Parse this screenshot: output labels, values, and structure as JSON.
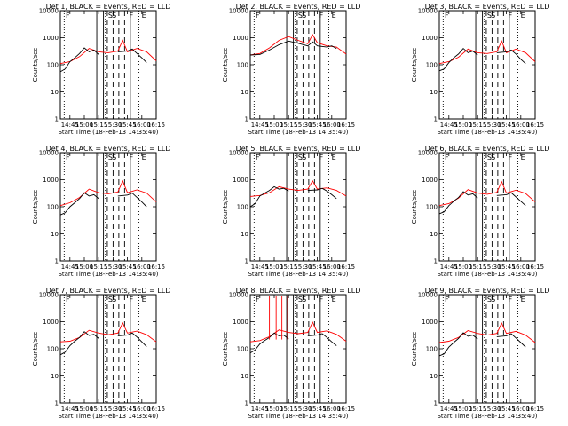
{
  "chart_data": {
    "type": "line",
    "layout": "3x3 grid",
    "y_scale": "log",
    "ylim": [
      1,
      10000
    ],
    "xlim": [
      "14:35",
      "16:15"
    ],
    "ylabel": "Counts/sec",
    "xlabel": "Start Time (18-Feb-13 14:35:40)",
    "x_ticks": [
      "14:45",
      "15:00",
      "15:15",
      "15:30",
      "15:45",
      "16:00",
      "16:15"
    ],
    "y_ticks": [
      "1",
      "10",
      "100",
      "1000",
      "10000"
    ],
    "series_colors": {
      "events": "#000000",
      "lld": "#ff0000"
    },
    "panels": [
      {
        "title": "Det 1, BLACK = Events, RED = LLD",
        "letters": [
          "F",
          "S",
          "S",
          "F",
          "E"
        ],
        "events": {
          "x": [
            "14:35",
            "14:40",
            "14:45",
            "14:50",
            "14:55",
            "15:00",
            "15:05",
            "15:10",
            "15:15"
          ],
          "y": [
            55,
            70,
            130,
            180,
            260,
            420,
            300,
            350,
            240
          ]
        },
        "events2": {
          "x": [
            "15:35",
            "15:45",
            "15:50",
            "15:55",
            "16:00",
            "16:05"
          ],
          "y": [
            300,
            320,
            380,
            260,
            180,
            120
          ]
        },
        "lld": {
          "x": [
            "14:35",
            "14:45",
            "14:55",
            "15:05",
            "15:15",
            "15:25",
            "15:35",
            "15:40",
            "15:45",
            "15:55",
            "16:05",
            "16:15"
          ],
          "y": [
            110,
            130,
            200,
            400,
            300,
            280,
            320,
            800,
            300,
            400,
            300,
            140
          ]
        }
      },
      {
        "title": "Det 2, BLACK = Events, RED = LLD",
        "letters": [
          "F",
          "S",
          "S",
          "F",
          "E"
        ],
        "events": {
          "x": [
            "14:35",
            "14:45",
            "14:55",
            "15:05",
            "15:15",
            "15:25",
            "15:35",
            "15:40",
            "15:45",
            "15:55",
            "16:00",
            "16:05"
          ],
          "y": [
            230,
            240,
            350,
            550,
            750,
            620,
            500,
            700,
            500,
            450,
            500,
            400
          ]
        },
        "events2": {
          "x": [],
          "y": []
        },
        "lld": {
          "x": [
            "14:35",
            "14:45",
            "14:55",
            "15:05",
            "15:15",
            "15:25",
            "15:35",
            "15:40",
            "15:45",
            "15:55",
            "16:05",
            "16:15"
          ],
          "y": [
            230,
            260,
            420,
            800,
            1100,
            800,
            600,
            1300,
            650,
            500,
            450,
            250
          ]
        }
      },
      {
        "title": "Det 3, BLACK = Events, RED = LLD",
        "letters": [
          "F",
          "S",
          "S",
          "F",
          "E"
        ],
        "events": {
          "x": [
            "14:35",
            "14:40",
            "14:45",
            "14:50",
            "14:55",
            "15:00",
            "15:05",
            "15:10",
            "15:15"
          ],
          "y": [
            60,
            70,
            120,
            180,
            250,
            400,
            280,
            320,
            230
          ]
        },
        "events2": {
          "x": [
            "15:35",
            "15:45",
            "15:50",
            "15:55",
            "16:00",
            "16:05"
          ],
          "y": [
            280,
            300,
            350,
            250,
            160,
            110
          ]
        },
        "lld": {
          "x": [
            "14:35",
            "14:45",
            "14:55",
            "15:05",
            "15:15",
            "15:25",
            "15:35",
            "15:40",
            "15:45",
            "15:55",
            "16:05",
            "16:15"
          ],
          "y": [
            110,
            130,
            190,
            380,
            280,
            260,
            300,
            750,
            280,
            380,
            280,
            130
          ]
        }
      },
      {
        "title": "Det 4, BLACK = Events, RED = LLD",
        "letters": [
          "F",
          "S",
          "S",
          "F",
          "E"
        ],
        "events": {
          "x": [
            "14:35",
            "14:40",
            "14:45",
            "14:50",
            "14:55",
            "15:00",
            "15:05",
            "15:10",
            "15:15"
          ],
          "y": [
            50,
            60,
            100,
            140,
            200,
            330,
            250,
            280,
            200
          ]
        },
        "events2": {
          "x": [
            "15:35",
            "15:45",
            "15:50",
            "15:55",
            "16:00",
            "16:05"
          ],
          "y": [
            250,
            270,
            320,
            220,
            150,
            100
          ]
        },
        "lld": {
          "x": [
            "14:35",
            "14:45",
            "14:55",
            "15:05",
            "15:15",
            "15:25",
            "15:35",
            "15:40",
            "15:45",
            "15:55",
            "16:05",
            "16:15"
          ],
          "y": [
            110,
            140,
            220,
            450,
            330,
            300,
            350,
            900,
            330,
            420,
            320,
            150
          ]
        }
      },
      {
        "title": "Det 5, BLACK = Events, RED = LLD",
        "letters": [
          "F",
          "S",
          "S",
          "F",
          "E"
        ],
        "events": {
          "x": [
            "14:35",
            "14:40",
            "14:45",
            "14:50",
            "14:55",
            "15:00",
            "15:05",
            "15:10",
            "15:15"
          ],
          "y": [
            100,
            130,
            250,
            320,
            400,
            550,
            450,
            480,
            380
          ]
        },
        "events2": {
          "x": [
            "15:35",
            "15:45",
            "15:50",
            "15:55",
            "16:00",
            "16:05"
          ],
          "y": [
            400,
            420,
            480,
            380,
            280,
            200
          ]
        },
        "lld": {
          "x": [
            "14:35",
            "14:45",
            "14:55",
            "15:05",
            "15:15",
            "15:25",
            "15:35",
            "15:40",
            "15:45",
            "15:55",
            "16:05",
            "16:15"
          ],
          "y": [
            240,
            260,
            330,
            550,
            450,
            400,
            450,
            900,
            450,
            500,
            400,
            250
          ]
        }
      },
      {
        "title": "Det 6, BLACK = Events, RED = LLD",
        "letters": [
          "F",
          "S",
          "S",
          "F",
          "E"
        ],
        "events": {
          "x": [
            "14:35",
            "14:40",
            "14:45",
            "14:50",
            "14:55",
            "15:00",
            "15:05",
            "15:10",
            "15:15"
          ],
          "y": [
            55,
            65,
            110,
            160,
            220,
            360,
            270,
            300,
            210
          ]
        },
        "events2": {
          "x": [
            "15:35",
            "15:45",
            "15:50",
            "15:55",
            "16:00",
            "16:05"
          ],
          "y": [
            260,
            280,
            330,
            230,
            160,
            110
          ]
        },
        "lld": {
          "x": [
            "14:35",
            "14:45",
            "14:55",
            "15:05",
            "15:15",
            "15:25",
            "15:35",
            "15:40",
            "15:45",
            "15:55",
            "16:05",
            "16:15"
          ],
          "y": [
            110,
            130,
            210,
            430,
            320,
            290,
            340,
            850,
            320,
            410,
            310,
            150
          ]
        }
      },
      {
        "title": "Det 7, BLACK = Events, RED = LLD",
        "letters": [
          "F",
          "S",
          "S",
          "F",
          "E"
        ],
        "events": {
          "x": [
            "14:35",
            "14:40",
            "14:45",
            "14:50",
            "14:55",
            "15:00",
            "15:05",
            "15:10",
            "15:15"
          ],
          "y": [
            60,
            75,
            130,
            190,
            260,
            430,
            310,
            340,
            240
          ]
        },
        "events2": {
          "x": [
            "15:35",
            "15:45",
            "15:50",
            "15:55",
            "16:00",
            "16:05"
          ],
          "y": [
            300,
            320,
            380,
            270,
            180,
            120
          ]
        },
        "lld": {
          "x": [
            "14:35",
            "14:45",
            "14:55",
            "15:05",
            "15:15",
            "15:25",
            "15:35",
            "15:40",
            "15:45",
            "15:55",
            "16:05",
            "16:15"
          ],
          "y": [
            180,
            190,
            260,
            480,
            380,
            330,
            380,
            900,
            380,
            450,
            330,
            180
          ]
        }
      },
      {
        "title": "Det 8, BLACK = Events, RED = LLD",
        "letters": [
          "F",
          "S",
          "S",
          "F",
          "E"
        ],
        "events": {
          "x": [
            "14:35",
            "14:40",
            "14:45",
            "14:50",
            "14:55",
            "15:00",
            "15:05",
            "15:10",
            "15:15"
          ],
          "y": [
            70,
            90,
            150,
            200,
            260,
            380,
            300,
            320,
            230
          ]
        },
        "events2": {
          "x": [
            "15:35",
            "15:45",
            "15:50",
            "15:55",
            "16:00",
            "16:05"
          ],
          "y": [
            300,
            320,
            360,
            260,
            180,
            130
          ]
        },
        "lld": {
          "x": [
            "14:35",
            "14:45",
            "14:55",
            "15:05",
            "15:15",
            "15:25",
            "15:35",
            "15:40",
            "15:45",
            "15:55",
            "16:05",
            "16:15"
          ],
          "y": [
            180,
            200,
            280,
            500,
            400,
            360,
            400,
            950,
            400,
            460,
            340,
            190
          ]
        },
        "lld_spikes": [
          "14:55",
          "15:02",
          "15:08",
          "15:14"
        ]
      },
      {
        "title": "Det 9, BLACK = Events, RED = LLD",
        "letters": [
          "F",
          "S",
          "S",
          "F",
          "E"
        ],
        "events": {
          "x": [
            "14:35",
            "14:40",
            "14:45",
            "14:50",
            "14:55",
            "15:00",
            "15:05",
            "15:10",
            "15:15"
          ],
          "y": [
            55,
            65,
            115,
            170,
            240,
            390,
            290,
            320,
            230
          ]
        },
        "events2": {
          "x": [
            "15:35",
            "15:45",
            "15:50",
            "15:55",
            "16:00",
            "16:05"
          ],
          "y": [
            280,
            300,
            360,
            250,
            170,
            115
          ]
        },
        "lld": {
          "x": [
            "14:35",
            "14:45",
            "14:55",
            "15:05",
            "15:15",
            "15:25",
            "15:35",
            "15:40",
            "15:45",
            "15:55",
            "16:05",
            "16:15"
          ],
          "y": [
            170,
            190,
            260,
            470,
            370,
            320,
            370,
            880,
            370,
            440,
            320,
            170
          ]
        }
      }
    ],
    "vertical_markers": {
      "solid": [
        "15:13",
        "15:20",
        "15:48"
      ],
      "dashed": [
        "15:24",
        "15:30",
        "15:36",
        "15:42"
      ],
      "dotted": [
        "14:39",
        "15:22",
        "15:57"
      ]
    }
  }
}
